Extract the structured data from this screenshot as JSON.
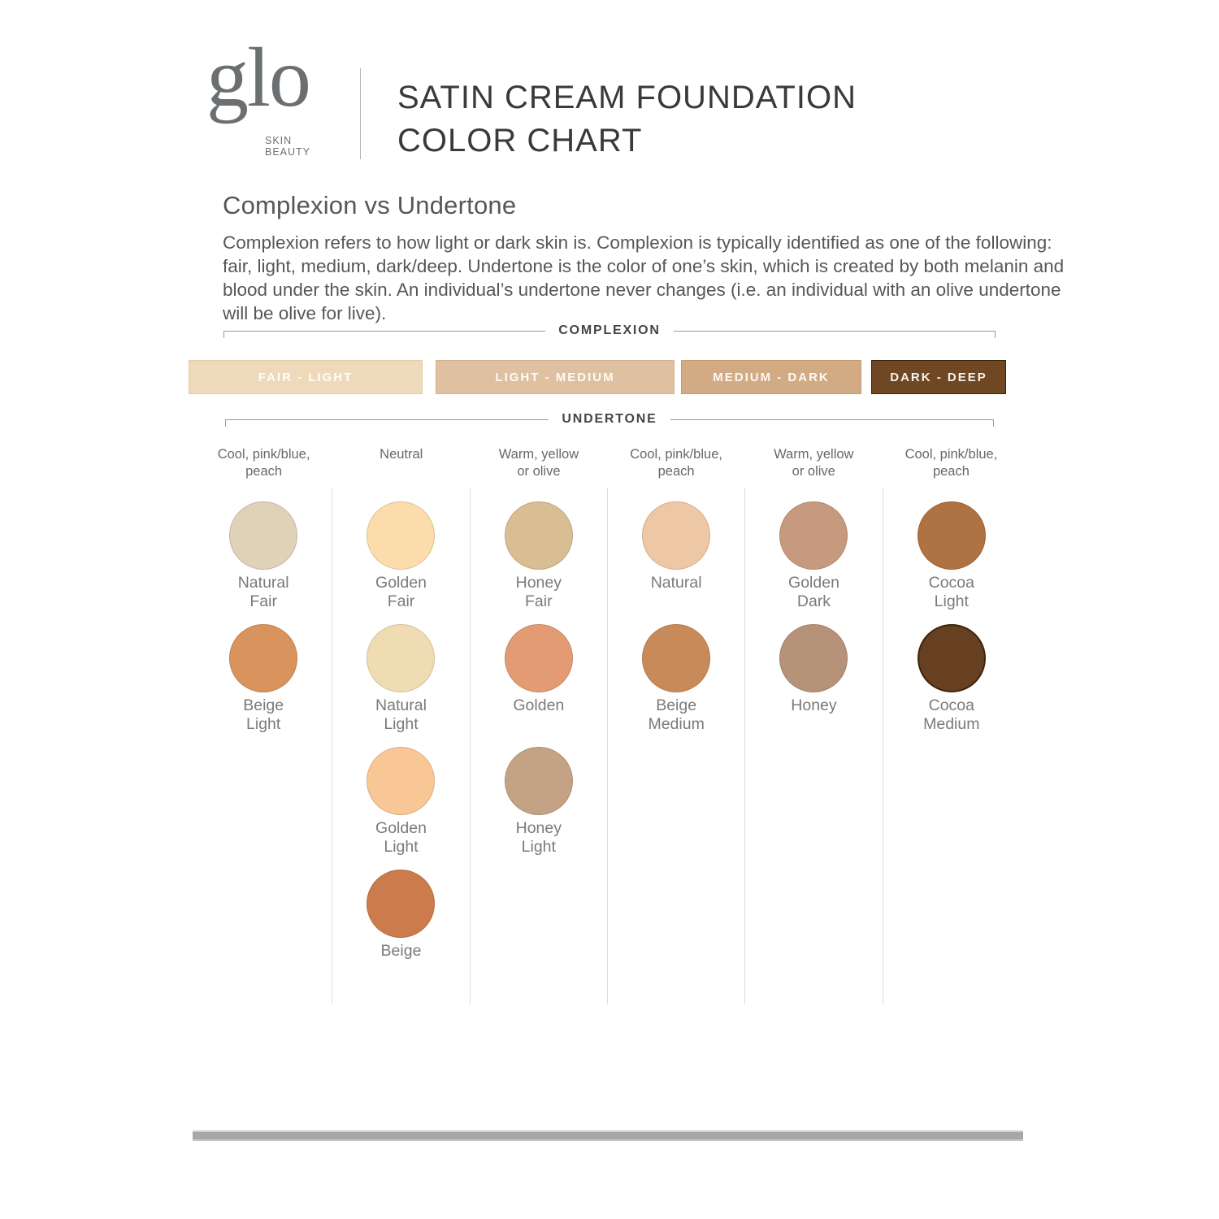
{
  "brand": {
    "logo": "glo",
    "sub_line1": "SKIN",
    "sub_line2": "BEAUTY"
  },
  "header": {
    "title_line1": "SATIN CREAM FOUNDATION",
    "title_line2": "COLOR CHART"
  },
  "intro": {
    "heading": "Complexion vs Undertone",
    "body": "Complexion refers to how light or dark skin is. Complexion is typically identified as one of the following: fair, light, medium, dark/deep. Undertone is the color of one’s skin, which is created by both melanin and blood under the skin. An individual’s undertone never changes (i.e. an individual with an olive undertone will be olive for live)."
  },
  "complexion": {
    "label": "COMPLEXION",
    "bands": [
      {
        "label": "FAIR - LIGHT",
        "color": "#eed9ba",
        "border": "#e2cdaa"
      },
      {
        "label": "LIGHT - MEDIUM",
        "color": "#dfc0a0",
        "border": "#d2b28e"
      },
      {
        "label": "MEDIUM - DARK",
        "color": "#d2ab84",
        "border": "#c39a72"
      },
      {
        "label": "DARK - DEEP",
        "color": "#6f4823",
        "border": "#3a230c"
      }
    ]
  },
  "undertone": {
    "label": "UNDERTONE",
    "columns": [
      {
        "undertone": "Cool, pink/blue,\npeach",
        "swatches": [
          {
            "name": "Natural\nFair",
            "color": "#ded2b8"
          },
          {
            "name": "Beige\nLight",
            "color": "#d9935d"
          }
        ]
      },
      {
        "undertone": "Neutral",
        "swatches": [
          {
            "name": "Golden\nFair",
            "color": "#fbdcaa"
          },
          {
            "name": "Natural\nLight",
            "color": "#f0dcb2"
          },
          {
            "name": "Golden\nLight",
            "color": "#f9c795"
          },
          {
            "name": "Beige",
            "color": "#cc7c4c"
          }
        ]
      },
      {
        "undertone": "Warm, yellow\nor olive",
        "swatches": [
          {
            "name": "Honey\nFair",
            "color": "#d9bd93"
          },
          {
            "name": "Golden",
            "color": "#e29b73"
          },
          {
            "name": "Honey\nLight",
            "color": "#c3a384"
          }
        ]
      },
      {
        "undertone": "Cool, pink/blue,\npeach",
        "swatches": [
          {
            "name": "Natural",
            "color": "#eec7a5"
          },
          {
            "name": "Beige\nMedium",
            "color": "#c98a59"
          }
        ]
      },
      {
        "undertone": "Warm, yellow\nor olive",
        "swatches": [
          {
            "name": "Golden\nDark",
            "color": "#c79a80"
          },
          {
            "name": "Honey",
            "color": "#b69279"
          }
        ]
      },
      {
        "undertone": "Cool, pink/blue,\npeach",
        "swatches": [
          {
            "name": "Cocoa\nLight",
            "color": "#af7242"
          },
          {
            "name": "Cocoa\nMedium",
            "color": "#664020",
            "border": "#3c240b"
          }
        ]
      }
    ]
  }
}
